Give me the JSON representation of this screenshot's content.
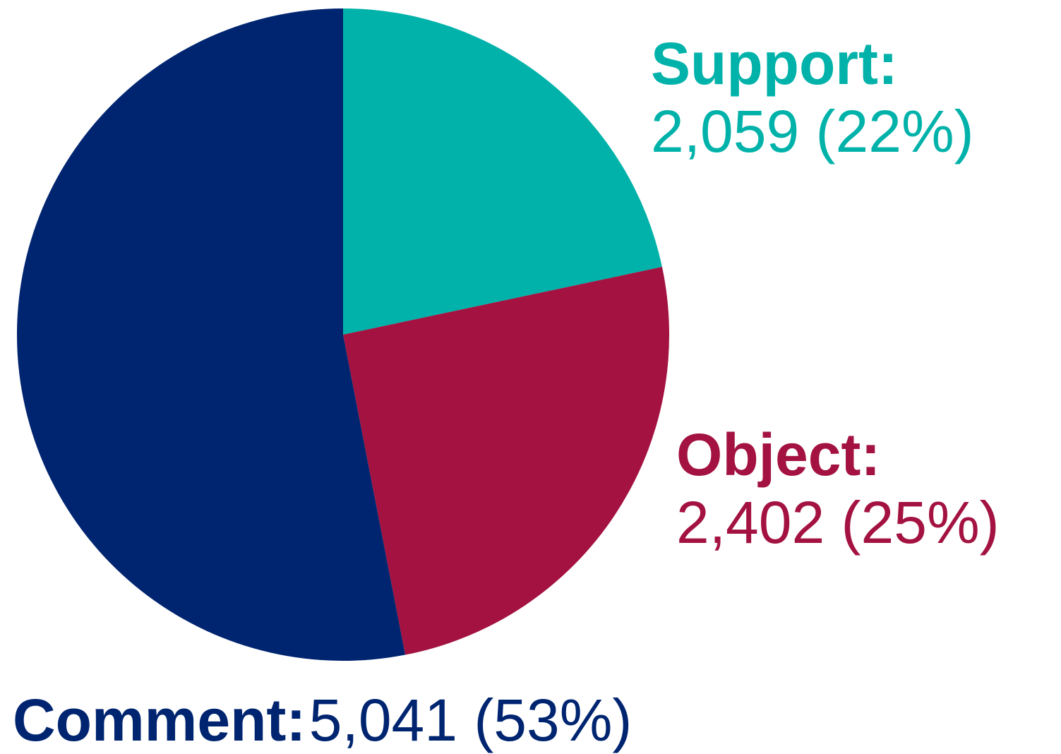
{
  "chart_data": {
    "type": "pie",
    "slices": [
      {
        "name": "Support",
        "label": "Support:",
        "value": 2059,
        "value_text": "2,059 (22%)",
        "percent": 22,
        "color": "#00b2a9"
      },
      {
        "name": "Object",
        "label": "Object:",
        "value": 2402,
        "value_text": "2,402 (25%)",
        "percent": 25,
        "color": "#a31240"
      },
      {
        "name": "Comment",
        "label": "Comment:",
        "value": 5041,
        "value_text": "5,041 (53%)",
        "percent": 53,
        "color": "#002570"
      }
    ]
  }
}
